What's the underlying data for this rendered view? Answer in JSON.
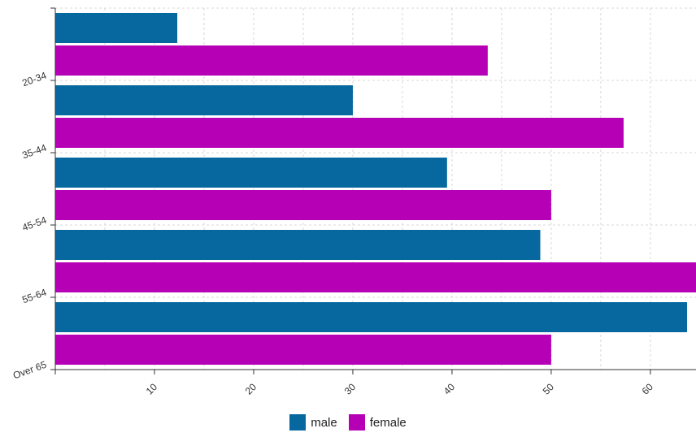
{
  "chart_data": {
    "type": "bar",
    "orientation": "horizontal",
    "categories": [
      "20-34",
      "35-44",
      "45-54",
      "55-64",
      "Over 65"
    ],
    "series": [
      {
        "name": "male",
        "color": "#07679f",
        "values": [
          12.3,
          30.0,
          39.5,
          48.9,
          63.7
        ]
      },
      {
        "name": "female",
        "color": "#b600b6",
        "values": [
          43.6,
          57.3,
          50.0,
          64.6,
          50.0
        ]
      }
    ],
    "xlim": [
      0,
      64.6
    ],
    "xticks": [
      10,
      20,
      30,
      40,
      50,
      60
    ],
    "grid": true,
    "legend_position": "bottom"
  }
}
